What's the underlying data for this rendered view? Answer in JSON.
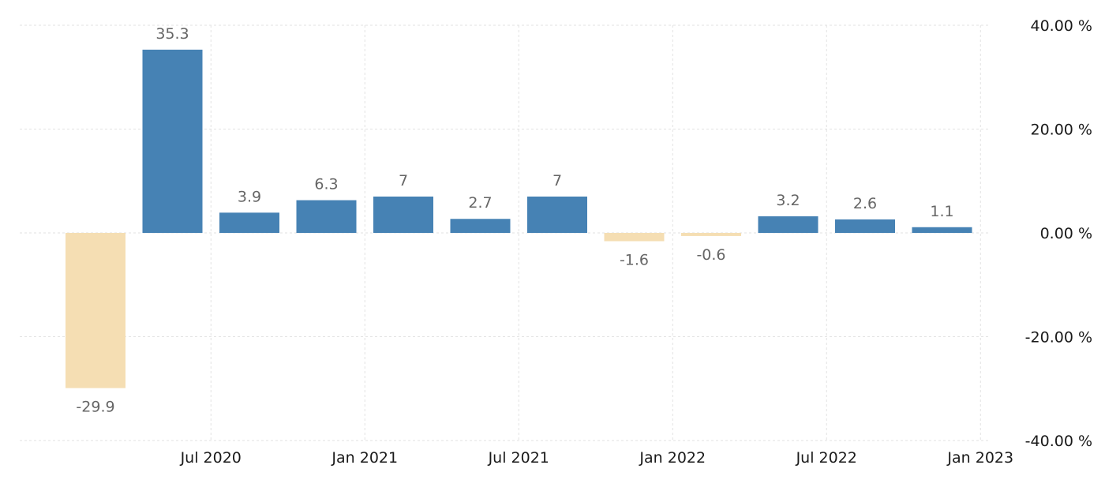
{
  "chart_data": {
    "type": "bar",
    "x": [
      "Apr 2020",
      "Jul 2020",
      "Oct 2020",
      "Jan 2021",
      "Apr 2021",
      "Jul 2021",
      "Oct 2021",
      "Jan 2022",
      "Apr 2022",
      "Jul 2022",
      "Oct 2022",
      "Jan 2023"
    ],
    "values": [
      -29.9,
      35.3,
      3.9,
      6.3,
      7,
      2.7,
      7,
      -1.6,
      -0.6,
      3.2,
      2.6,
      1.1
    ],
    "value_labels": [
      "-29.9",
      "35.3",
      "3.9",
      "6.3",
      "7",
      "2.7",
      "7",
      "-1.6",
      "-0.6",
      "3.2",
      "2.6",
      "1.1"
    ],
    "x_ticks": [
      {
        "at": "Jul 2020",
        "label": "Jul 2020"
      },
      {
        "at": "Jan 2021",
        "label": "Jan 2021"
      },
      {
        "at": "Jul 2021",
        "label": "Jul 2021"
      },
      {
        "at": "Jan 2022",
        "label": "Jan 2022"
      },
      {
        "at": "Jul 2022",
        "label": "Jul 2022"
      },
      {
        "at": "Jan 2023",
        "label": "Jan 2023"
      }
    ],
    "y_ticks": [
      {
        "value": 40,
        "label": "40.00 %"
      },
      {
        "value": 20,
        "label": "20.00 %"
      },
      {
        "value": 0,
        "label": "0.00 %"
      },
      {
        "value": -20,
        "label": "-20.00 %"
      },
      {
        "value": -40,
        "label": "-40.00 %"
      }
    ],
    "ylim": [
      -40,
      40
    ],
    "y_axis_position": "right",
    "grid": true,
    "title": "",
    "xlabel": "",
    "ylabel": "",
    "colors": {
      "positive": "#4682b4",
      "negative": "#f5deb3"
    }
  }
}
